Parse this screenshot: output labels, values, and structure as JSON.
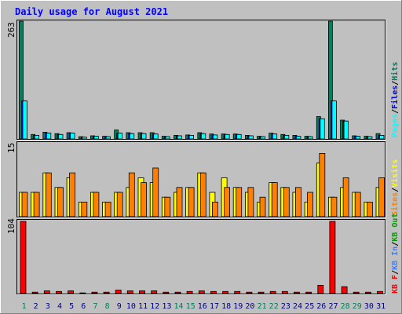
{
  "title": "Daily usage for August 2021",
  "colors": {
    "background": "#c0c0c0",
    "plot_bg": "#c0c0c0",
    "title": "#0000ff",
    "hits": "#00805c",
    "files": "#0000ff",
    "pages": "#00ffff",
    "visits": "#ffff00",
    "sites": "#ff8000",
    "kbytes": "#ff0000",
    "weekday_label": "#000080",
    "weekend_label": "#00805c"
  },
  "chart_data": [
    {
      "type": "bar",
      "panel": "hits-files-pages",
      "ymax_label": "263",
      "ylim": [
        0,
        263
      ],
      "legend": [
        "Pages",
        "Files",
        "Hits"
      ],
      "categories": [
        "1",
        "2",
        "3",
        "4",
        "5",
        "6",
        "7",
        "8",
        "9",
        "10",
        "11",
        "12",
        "13",
        "14",
        "15",
        "16",
        "17",
        "18",
        "19",
        "20",
        "21",
        "22",
        "23",
        "24",
        "25",
        "26",
        "27",
        "28",
        "29",
        "30",
        "31"
      ],
      "series": [
        {
          "name": "Hits",
          "values": [
            263,
            10,
            15,
            12,
            14,
            5,
            7,
            6,
            20,
            14,
            14,
            14,
            6,
            8,
            9,
            14,
            11,
            11,
            11,
            8,
            6,
            13,
            10,
            8,
            6,
            50,
            263,
            42,
            7,
            6,
            12
          ]
        },
        {
          "name": "Files",
          "values": [
            85,
            8,
            13,
            10,
            13,
            4,
            6,
            5,
            13,
            12,
            12,
            11,
            5,
            7,
            8,
            12,
            9,
            10,
            10,
            7,
            5,
            11,
            8,
            6,
            5,
            45,
            85,
            40,
            6,
            5,
            8
          ]
        },
        {
          "name": "Pages",
          "values": [
            85,
            8,
            13,
            10,
            13,
            4,
            6,
            5,
            13,
            12,
            12,
            11,
            5,
            7,
            8,
            12,
            9,
            10,
            10,
            7,
            5,
            11,
            8,
            6,
            5,
            45,
            85,
            40,
            6,
            5,
            8
          ]
        }
      ]
    },
    {
      "type": "bar",
      "panel": "visits-sites",
      "ymax_label": "15",
      "ylim": [
        0,
        15
      ],
      "legend": [
        "Sites",
        "Visits"
      ],
      "categories": [
        "1",
        "2",
        "3",
        "4",
        "5",
        "6",
        "7",
        "8",
        "9",
        "10",
        "11",
        "12",
        "13",
        "14",
        "15",
        "16",
        "17",
        "18",
        "19",
        "20",
        "21",
        "22",
        "23",
        "24",
        "25",
        "26",
        "27",
        "28",
        "29",
        "30",
        "31"
      ],
      "series": [
        {
          "name": "Visits",
          "values": [
            5,
            5,
            9,
            6,
            8,
            3,
            5,
            3,
            5,
            6,
            8,
            7,
            4,
            5,
            6,
            9,
            5,
            8,
            6,
            5,
            3,
            7,
            6,
            5,
            3,
            11,
            4,
            6,
            5,
            3,
            6
          ]
        },
        {
          "name": "Sites",
          "values": [
            5,
            5,
            9,
            6,
            9,
            3,
            5,
            3,
            5,
            9,
            7,
            10,
            4,
            6,
            6,
            9,
            3,
            6,
            6,
            6,
            4,
            7,
            6,
            6,
            5,
            13,
            4,
            8,
            5,
            3,
            8
          ]
        }
      ]
    },
    {
      "type": "bar",
      "panel": "kbytes",
      "ymax_label": "104",
      "ylim": [
        0,
        104
      ],
      "legend": [
        "KB F",
        "KB In",
        "KB Out"
      ],
      "categories": [
        "1",
        "2",
        "3",
        "4",
        "5",
        "6",
        "7",
        "8",
        "9",
        "10",
        "11",
        "12",
        "13",
        "14",
        "15",
        "16",
        "17",
        "18",
        "19",
        "20",
        "21",
        "22",
        "23",
        "24",
        "25",
        "26",
        "27",
        "28",
        "29",
        "30",
        "31"
      ],
      "series": [
        {
          "name": "KB F",
          "values": [
            104,
            2,
            4,
            3,
            4,
            1,
            2,
            2,
            5,
            4,
            4,
            4,
            2,
            2,
            3,
            4,
            3,
            3,
            3,
            2,
            2,
            3,
            3,
            2,
            2,
            12,
            104,
            10,
            2,
            2,
            3
          ]
        }
      ]
    }
  ],
  "x_labels": [
    "1",
    "2",
    "3",
    "4",
    "5",
    "6",
    "7",
    "8",
    "9",
    "10",
    "11",
    "12",
    "13",
    "14",
    "15",
    "16",
    "17",
    "18",
    "19",
    "20",
    "21",
    "22",
    "23",
    "24",
    "25",
    "26",
    "27",
    "28",
    "29",
    "30",
    "31"
  ],
  "weekend_days": [
    1,
    7,
    8,
    14,
    15,
    21,
    22,
    28,
    29
  ]
}
